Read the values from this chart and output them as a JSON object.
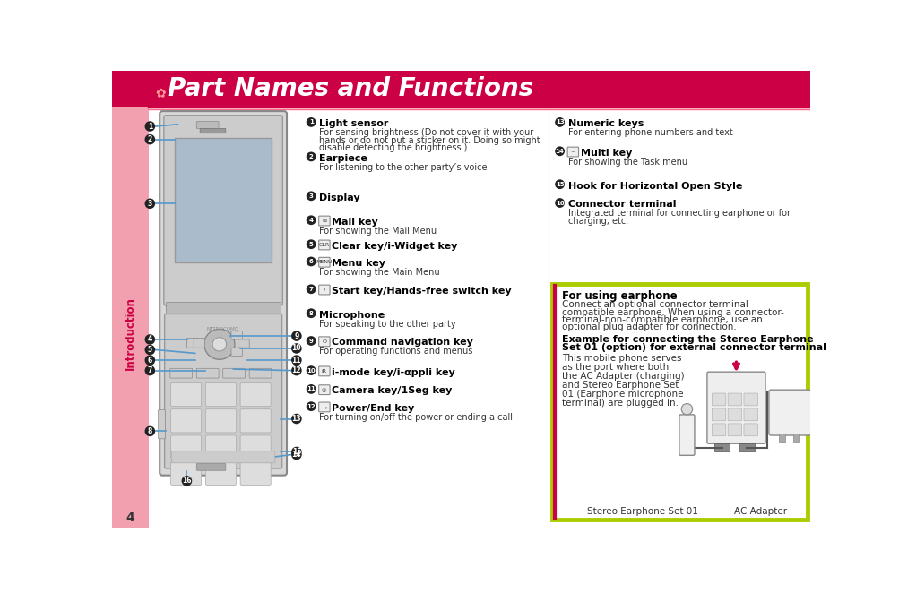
{
  "title": "Part Names and Functions",
  "title_color": "#FFFFFF",
  "title_bg_color": "#CC0044",
  "page_bg": "#FFFFFF",
  "left_strip_color": "#F2A0B0",
  "left_strip_crimson": "#CC0044",
  "intro_text_color": "#CC0044",
  "intro_label": "Introduction",
  "page_number": "4",
  "accent_line_color": "#E8003C",
  "blue_line_color": "#5599CC",
  "left_items": [
    {
      "num": "1",
      "label": "Light sensor",
      "has_icon": false,
      "desc": "For sensing brightness (Do not cover it with your\nhands or do not put a sticker on it. Doing so might\ndisable detecting the brightness.)"
    },
    {
      "num": "2",
      "label": "Earpiece",
      "has_icon": false,
      "desc": "For listening to the other party’s voice"
    },
    {
      "num": "3",
      "label": "Display",
      "has_icon": false,
      "desc": ""
    },
    {
      "num": "4",
      "label": "Mail key",
      "has_icon": true,
      "icon_text": "✉",
      "desc": "For showing the Mail Menu"
    },
    {
      "num": "5",
      "label": "Clear key/i-Widget key",
      "has_icon": true,
      "icon_text": "CLR",
      "desc": ""
    },
    {
      "num": "6",
      "label": "Menu key",
      "has_icon": true,
      "icon_text": "MENU",
      "desc": "For showing the Main Menu"
    },
    {
      "num": "7",
      "label": "Start key/Hands-free switch key",
      "has_icon": true,
      "icon_text": "/",
      "desc": ""
    },
    {
      "num": "8",
      "label": "Microphone",
      "has_icon": false,
      "desc": "For speaking to the other party"
    },
    {
      "num": "9",
      "label": "Command navigation key",
      "has_icon": true,
      "icon_text": "O",
      "desc": "For operating functions and menus"
    },
    {
      "num": "10",
      "label": "i-mode key/i-αppli key",
      "has_icon": true,
      "icon_text": "iR",
      "desc": ""
    },
    {
      "num": "11",
      "label": "Camera key/1Seg key",
      "has_icon": true,
      "icon_text": "◎",
      "desc": ""
    },
    {
      "num": "12",
      "label": "Power/End key",
      "has_icon": true,
      "icon_text": "→",
      "desc": "For turning on/off the power or ending a call"
    }
  ],
  "right_items": [
    {
      "num": "13",
      "label": "Numeric keys",
      "has_icon": false,
      "desc": "For entering phone numbers and text"
    },
    {
      "num": "14",
      "label": "Multi key",
      "has_icon": true,
      "icon_text": "~",
      "desc": "For showing the Task menu"
    },
    {
      "num": "15",
      "label": "Hook for Horizontal Open Style",
      "has_icon": false,
      "desc": ""
    },
    {
      "num": "16",
      "label": "Connector terminal",
      "has_icon": false,
      "desc": "Integrated terminal for connecting earphone or for\ncharging, etc."
    }
  ],
  "earphone_box_border": "#AACC00",
  "earphone_title": "For using earphone",
  "earphone_text1": "Connect an optional connector-terminal-compatible earphone. When using a connector-terminal-non-compatible earphone, use an optional plug adapter for connection.",
  "earphone_example_title": "Example for connecting the Stereo Earphone Set 01 (option) for external connector terminal",
  "earphone_body_text": "This mobile phone serves\nas the port where both\nthe AC Adapter (charging)\nand Stereo Earphone Set\n01 (Earphone microphone\nterminal) are plugged in.",
  "earphone_label1": "Stereo Earphone Set 01",
  "earphone_label2": "AC Adapter",
  "num_circle_color": "#222222",
  "num_circle_bg": "#222222"
}
